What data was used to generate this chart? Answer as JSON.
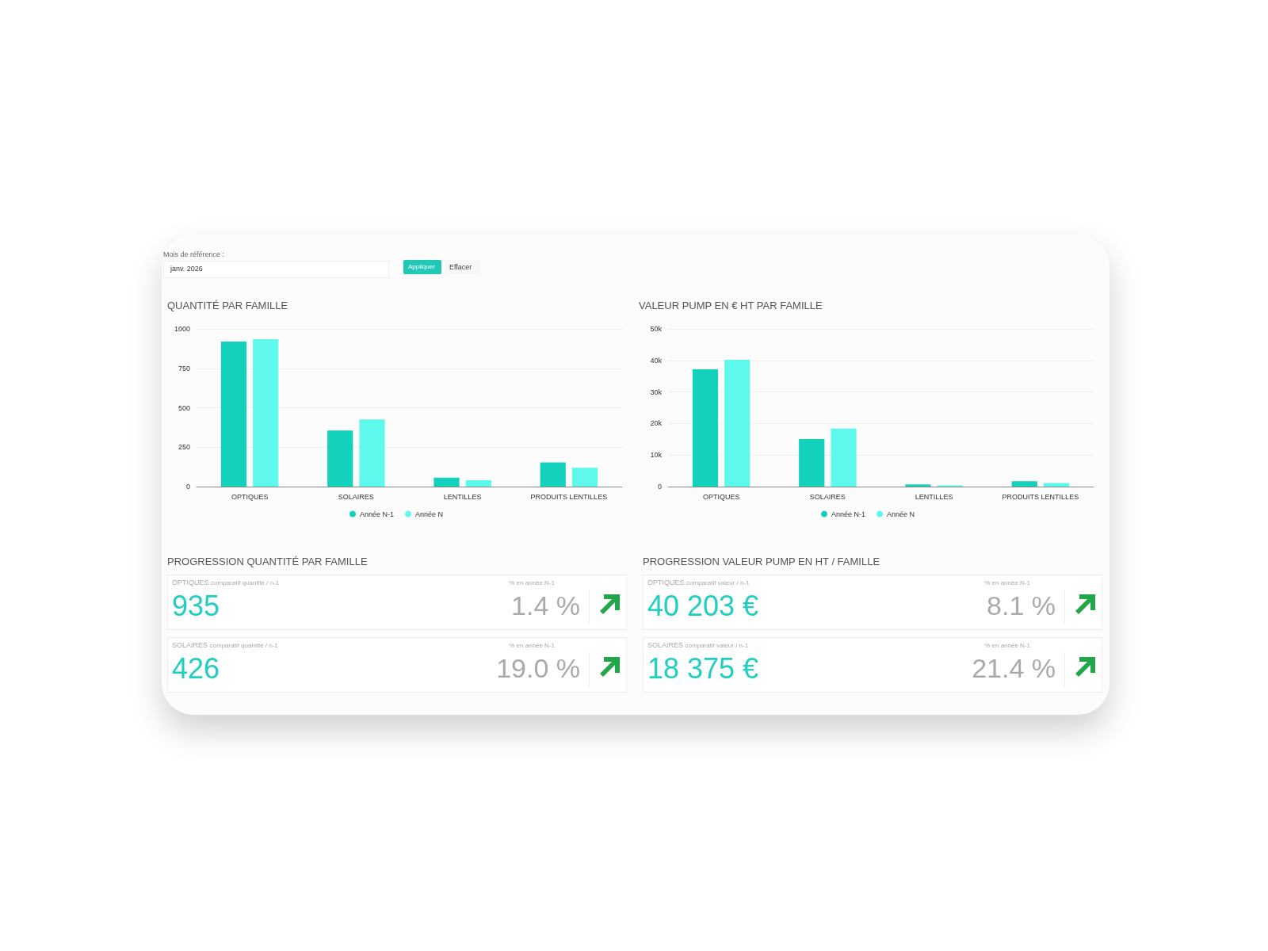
{
  "chart_data": [
    {
      "type": "other",
      "annotations": [
        "Mois de référence :",
        "janv. 2026",
        "Appliquer",
        "Effacer"
      ]
    },
    {
      "type": "bar",
      "title": "QUANTITÉ PAR FAMILLE",
      "categories": [
        "OPTIQUES",
        "SOLAIRES",
        "LENTILLES",
        "PRODUITS LENTILLES"
      ],
      "series": [
        {
          "name": "Année N-1",
          "color": "#13d1bd",
          "values": [
            920,
            355,
            57,
            153
          ]
        },
        {
          "name": "Année N",
          "color": "#5ef8ec",
          "values": [
            935,
            426,
            40,
            119
          ]
        }
      ],
      "ylim": [
        0,
        1000
      ],
      "yticks": [
        0,
        250,
        500,
        750,
        1000
      ],
      "grid": "y",
      "legend": "bottom"
    },
    {
      "type": "bar",
      "title": "VALEUR PUMP EN € HT PAR FAMILLE",
      "categories": [
        "OPTIQUES",
        "SOLAIRES",
        "LENTILLES",
        "PRODUITS LENTILLES"
      ],
      "series": [
        {
          "name": "Année N-1",
          "color": "#13d1bd",
          "values": [
            37200,
            15100,
            700,
            1700
          ]
        },
        {
          "name": "Année N",
          "color": "#5ef8ec",
          "values": [
            40200,
            18400,
            400,
            1100
          ]
        }
      ],
      "ylim": [
        0,
        50000
      ],
      "yticks": [
        0,
        {
          "value": 10000,
          "label": "10k"
        },
        {
          "value": 20000,
          "label": "20k"
        },
        {
          "value": 30000,
          "label": "30k"
        },
        {
          "value": 40000,
          "label": "40k"
        },
        {
          "value": 50000,
          "label": "50k"
        }
      ],
      "grid": "y",
      "legend": "bottom"
    },
    {
      "type": "other",
      "title": "PROGRESSION QUANTITÉ PAR FAMILLE",
      "annotations": [
        "OPTIQUES",
        "comparatif quantité / n-1",
        "935",
        "% en année N-1",
        "1.4 %",
        "SOLAIRES",
        "comparatif quantité / n-1",
        "426",
        "% en année N-1",
        "19.0 %"
      ]
    },
    {
      "type": "other",
      "title": "PROGRESSION VALEUR PUMP EN HT / FAMILLE",
      "annotations": [
        "OPTIQUES",
        "comparatif valeur / n-1",
        "40 203 €",
        "% en année N-1",
        "8.1 %",
        "SOLAIRES",
        "comparatif valeur / n-1",
        "18 375 €",
        "% en année N-1",
        "21.4 %"
      ]
    }
  ]
}
